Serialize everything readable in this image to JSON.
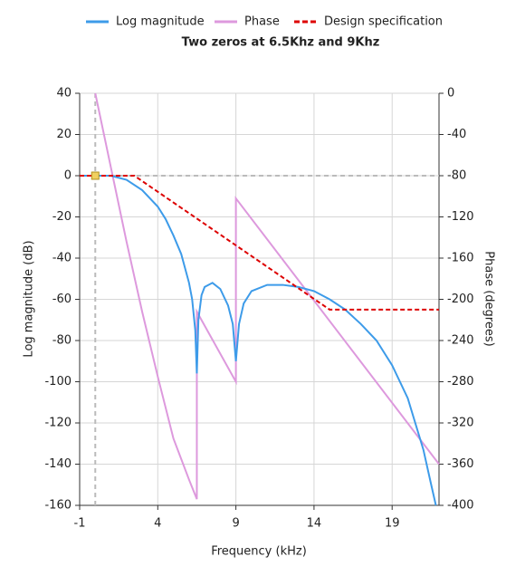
{
  "chart_data": {
    "type": "line",
    "title": "Two zeros at 6.5Khz and 9Khz",
    "x_label": "Frequency (kHz)",
    "y_label": "Log magnitude (dB)",
    "y2_label": "Phase (degrees)",
    "xlim": [
      -1,
      22
    ],
    "xticks": [
      -1,
      4,
      9,
      14,
      19
    ],
    "ylim": [
      -160,
      40
    ],
    "yticks": [
      -160,
      -140,
      -120,
      -100,
      -80,
      -60,
      -40,
      -20,
      0,
      20,
      40
    ],
    "y2lim": [
      -400,
      0
    ],
    "y2ticks": [
      -400,
      -360,
      -320,
      -280,
      -240,
      -200,
      -160,
      -120,
      -80,
      -40,
      0
    ],
    "grid": true,
    "legend": "top",
    "cursor": {
      "x": 0,
      "y": 0
    },
    "series": [
      {
        "name": "Log magnitude",
        "color": "#3d9be9",
        "dash": false,
        "x": [
          -1,
          0,
          1,
          2,
          3,
          4,
          4.5,
          5,
          5.5,
          6,
          6.2,
          6.4,
          6.5,
          6.6,
          6.8,
          7,
          7.5,
          8,
          8.5,
          8.8,
          9,
          9.2,
          9.5,
          10,
          11,
          12,
          13,
          14,
          15,
          16,
          17,
          18,
          19,
          20,
          21,
          21.5,
          21.8
        ],
        "values": [
          0,
          0,
          0,
          -2,
          -7,
          -15,
          -21,
          -29,
          -38,
          -52,
          -60,
          -75,
          -96,
          -70,
          -58,
          -54,
          -52,
          -55,
          -63,
          -72,
          -90,
          -72,
          -62,
          -56,
          -53,
          -53,
          -54,
          -56,
          -60,
          -65,
          -72,
          -80,
          -92,
          -108,
          -133,
          -150,
          -160
        ]
      },
      {
        "name": "Phase",
        "color": "#dd99dd",
        "dash": false,
        "axis": "y2",
        "x": [
          0,
          1,
          2,
          3,
          4,
          5,
          6,
          6.5,
          6.5,
          9,
          9,
          22
        ],
        "values": [
          0,
          -72,
          -144,
          -212,
          -275,
          -335,
          -375,
          -394,
          -212,
          -280,
          -102,
          -360
        ]
      },
      {
        "name": "Design specification",
        "color": "#dd0000",
        "dash": true,
        "x": [
          -1,
          2.5,
          15,
          22
        ],
        "values": [
          0,
          0,
          -65,
          -65
        ]
      }
    ]
  }
}
